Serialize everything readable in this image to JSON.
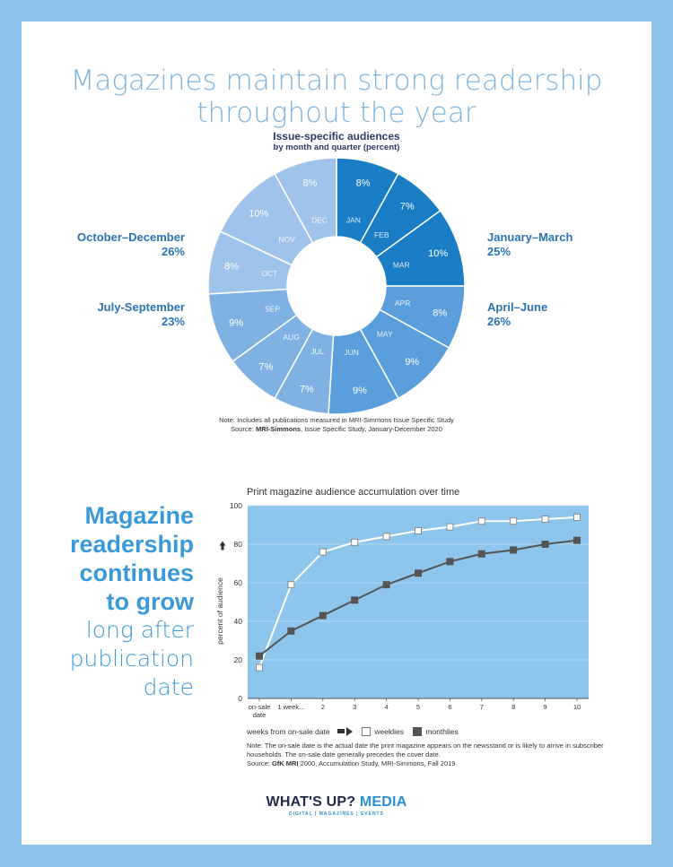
{
  "title": {
    "line1": "Magazines maintain strong readership",
    "line2": "throughout the year"
  },
  "donut": {
    "title": "Issue-specific audiences",
    "subtitle": "by month and quarter (percent)",
    "note": "Note: Includes all publications measured in MRI-Simmons Issue Specific Study",
    "source_prefix": "Source: ",
    "source_bold": "MRI-Simmons",
    "source_rest": ", Issue Specific Study, January-December 2020",
    "quarters": [
      {
        "name": "January–March",
        "value": "25%"
      },
      {
        "name": "April–June",
        "value": "26%"
      },
      {
        "name": "July-September",
        "value": "23%"
      },
      {
        "name": "October–December",
        "value": "26%"
      }
    ]
  },
  "side_text": {
    "bold": [
      "Magazine",
      "readership",
      "continues",
      "to grow"
    ],
    "light": [
      "long after",
      "publication",
      "date"
    ]
  },
  "line": {
    "title": "Print magazine audience accumulation over time",
    "legend_x": "weeks from on-sale date",
    "legend_weeklies": "weeklies",
    "legend_monthlies": "monthlies",
    "note": "Note: The on-sale date is the actual date the print magazine appears on the newsstand or is likely to arrive in subscriber households. The on-sale date generally precedes the cover date.",
    "source_prefix": "Source: ",
    "source_bold": "GfK MRI",
    "source_rest": " 2000, Accumulation Study, MRI-Simmons, Fall 2019."
  },
  "logo": {
    "main": "WHAT'S UP?",
    "media": "MEDIA",
    "tagline": "DIGITAL  |  MAGAZINES  |  EVENTS"
  },
  "colors": {
    "background": "#8dc3ea",
    "title": "#7cb4de",
    "quarter_label": "#2a73b5",
    "plot_bg": "#8ec5ec",
    "weeklies": "#ffffff",
    "monthlies": "#555555"
  },
  "chart_data": [
    {
      "type": "pie",
      "title": "Issue-specific audiences",
      "subtitle": "by month and quarter (percent)",
      "slices": [
        {
          "label": "JAN",
          "value": 8,
          "display": "8%",
          "color": "#1a7dc6"
        },
        {
          "label": "FEB",
          "value": 7,
          "display": "7%",
          "color": "#1a7dc6"
        },
        {
          "label": "MAR",
          "value": 10,
          "display": "10%",
          "color": "#1a7dc6"
        },
        {
          "label": "APR",
          "value": 8,
          "display": "8%",
          "color": "#5a9fdb"
        },
        {
          "label": "MAY",
          "value": 9,
          "display": "9%",
          "color": "#5a9fdb"
        },
        {
          "label": "JUN",
          "value": 9,
          "display": "9%",
          "color": "#5a9fdb"
        },
        {
          "label": "JUL",
          "value": 7,
          "display": "7%",
          "color": "#7fb2e3"
        },
        {
          "label": "AUG",
          "value": 7,
          "display": "7%",
          "color": "#7fb2e3"
        },
        {
          "label": "SEP",
          "value": 9,
          "display": "9%",
          "color": "#7fb2e3"
        },
        {
          "label": "OCT",
          "value": 8,
          "display": "8%",
          "color": "#9fc3ea"
        },
        {
          "label": "NOV",
          "value": 10,
          "display": "10%",
          "color": "#9fc3ea"
        },
        {
          "label": "DEC",
          "value": 8,
          "display": "8%",
          "color": "#9fc3ea"
        }
      ]
    },
    {
      "type": "line",
      "title": "Print magazine audience accumulation over time",
      "ylabel": "percent of audience",
      "xlabel": "weeks from on-sale date",
      "categories": [
        "on-sale date",
        "1 week...",
        "2",
        "3",
        "4",
        "5",
        "6",
        "7",
        "8",
        "9",
        "10"
      ],
      "ylim": [
        0,
        100
      ],
      "yticks": [
        0,
        20,
        40,
        60,
        80,
        100
      ],
      "grid": true,
      "series": [
        {
          "name": "weeklies",
          "values": [
            16,
            59,
            76,
            81,
            84,
            87,
            89,
            92,
            92,
            93,
            94
          ],
          "color": "#ffffff",
          "marker": "open-square"
        },
        {
          "name": "monthlies",
          "values": [
            22,
            35,
            43,
            51,
            59,
            65,
            71,
            75,
            77,
            80,
            82
          ],
          "color": "#555555",
          "marker": "filled-square"
        }
      ]
    }
  ]
}
